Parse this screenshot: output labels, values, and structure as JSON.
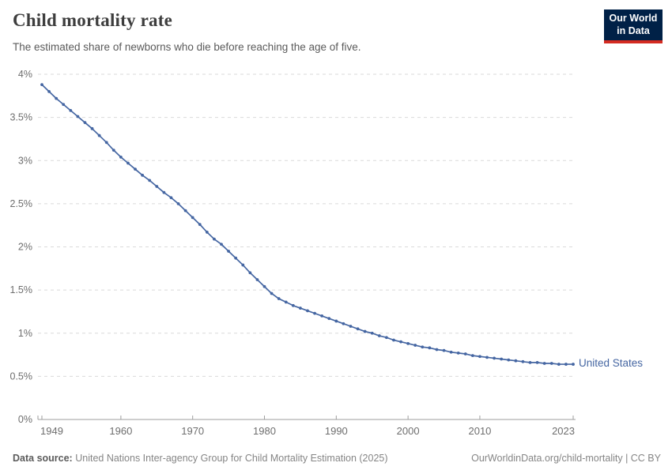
{
  "header": {
    "title": "Child mortality rate",
    "subtitle": "The estimated share of newborns who die before reaching the age of five.",
    "logo": {
      "line1": "Our World",
      "line2": "in Data",
      "background_color": "#002147",
      "accent_color": "#d42b21"
    }
  },
  "chart_data": {
    "type": "line",
    "title": "Child mortality rate",
    "xlabel": "",
    "ylabel": "",
    "ylim": [
      0,
      4
    ],
    "grid": true,
    "legend_position": "end-of-line",
    "x": [
      1949,
      1950,
      1951,
      1952,
      1953,
      1954,
      1955,
      1956,
      1957,
      1958,
      1959,
      1960,
      1961,
      1962,
      1963,
      1964,
      1965,
      1966,
      1967,
      1968,
      1969,
      1970,
      1971,
      1972,
      1973,
      1974,
      1975,
      1976,
      1977,
      1978,
      1979,
      1980,
      1981,
      1982,
      1983,
      1984,
      1985,
      1986,
      1987,
      1988,
      1989,
      1990,
      1991,
      1992,
      1993,
      1994,
      1995,
      1996,
      1997,
      1998,
      1999,
      2000,
      2001,
      2002,
      2003,
      2004,
      2005,
      2006,
      2007,
      2008,
      2009,
      2010,
      2011,
      2012,
      2013,
      2014,
      2015,
      2016,
      2017,
      2018,
      2019,
      2020,
      2021,
      2022,
      2023
    ],
    "series": [
      {
        "name": "United States",
        "color": "#4566a2",
        "unit": "%",
        "values": [
          3.88,
          3.8,
          3.72,
          3.65,
          3.58,
          3.51,
          3.44,
          3.37,
          3.29,
          3.21,
          3.12,
          3.04,
          2.97,
          2.9,
          2.83,
          2.77,
          2.7,
          2.63,
          2.57,
          2.5,
          2.42,
          2.34,
          2.26,
          2.17,
          2.09,
          2.03,
          1.95,
          1.87,
          1.79,
          1.7,
          1.62,
          1.54,
          1.46,
          1.4,
          1.36,
          1.32,
          1.29,
          1.26,
          1.23,
          1.2,
          1.17,
          1.14,
          1.11,
          1.08,
          1.05,
          1.02,
          1.0,
          0.97,
          0.95,
          0.92,
          0.9,
          0.88,
          0.86,
          0.84,
          0.83,
          0.81,
          0.8,
          0.78,
          0.77,
          0.76,
          0.74,
          0.73,
          0.72,
          0.71,
          0.7,
          0.69,
          0.68,
          0.67,
          0.66,
          0.66,
          0.65,
          0.65,
          0.64,
          0.64,
          0.64
        ]
      }
    ],
    "y_ticks": [
      {
        "value": 0,
        "label": "0%"
      },
      {
        "value": 0.5,
        "label": "0.5%"
      },
      {
        "value": 1,
        "label": "1%"
      },
      {
        "value": 1.5,
        "label": "1.5%"
      },
      {
        "value": 2,
        "label": "2%"
      },
      {
        "value": 2.5,
        "label": "2.5%"
      },
      {
        "value": 3,
        "label": "3%"
      },
      {
        "value": 3.5,
        "label": "3.5%"
      },
      {
        "value": 4,
        "label": "4%"
      }
    ],
    "x_ticks": [
      {
        "value": 1949,
        "label": "1949"
      },
      {
        "value": 1960,
        "label": "1960"
      },
      {
        "value": 1970,
        "label": "1970"
      },
      {
        "value": 1980,
        "label": "1980"
      },
      {
        "value": 1990,
        "label": "1990"
      },
      {
        "value": 2000,
        "label": "2000"
      },
      {
        "value": 2010,
        "label": "2010"
      },
      {
        "value": 2023,
        "label": "2023"
      }
    ]
  },
  "footer": {
    "source_label": "Data source:",
    "source_text": "United Nations Inter-agency Group for Child Mortality Estimation (2025)",
    "right_text": "OurWorldinData.org/child-mortality | CC BY"
  },
  "colors": {
    "line_blue": "#4566a2",
    "grid_gray": "#dadada",
    "axis_gray": "#9e9e9e",
    "tick_label_gray": "#6e6e6e"
  }
}
